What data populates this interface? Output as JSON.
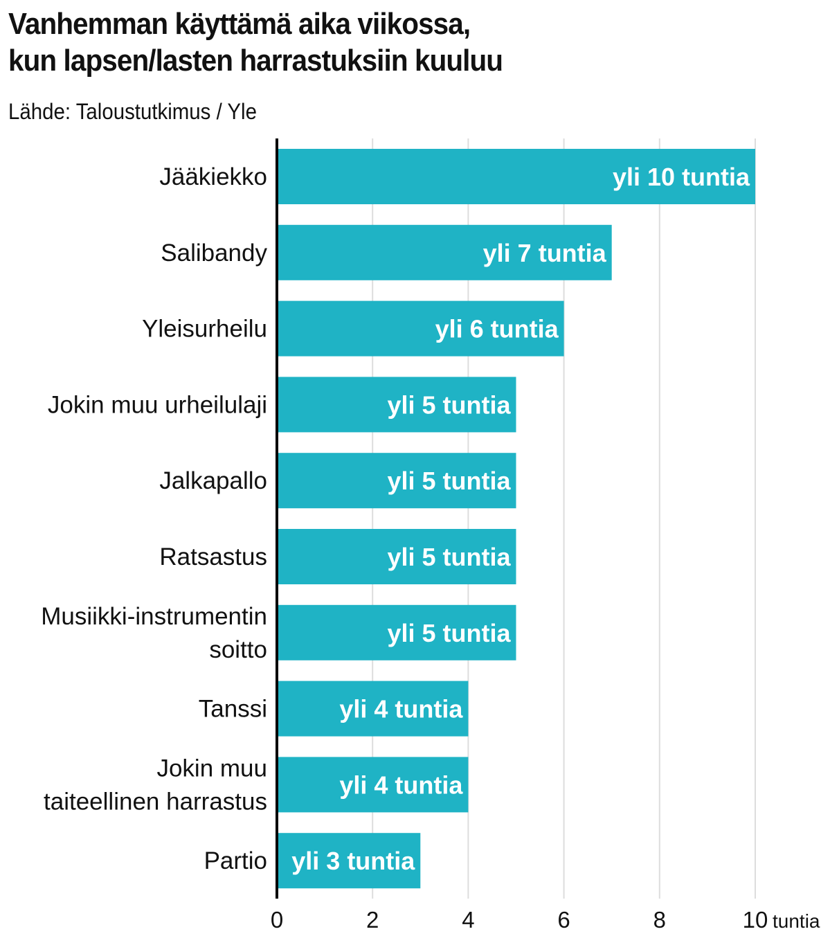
{
  "chart_data": {
    "type": "bar",
    "orientation": "horizontal",
    "title_lines": [
      "Vanhemman käyttämä aika viikossa,",
      "kun lapsen/lasten harrastuksiin kuuluu"
    ],
    "subtitle": "Lähde: Taloustutkimus / Yle",
    "categories": [
      [
        "Jääkiekko"
      ],
      [
        "Salibandy"
      ],
      [
        "Yleisurheilu"
      ],
      [
        "Jokin muu urheilulaji"
      ],
      [
        "Jalkapallo"
      ],
      [
        "Ratsastus"
      ],
      [
        "Musiikki-instrumentin",
        "soitto"
      ],
      [
        "Tanssi"
      ],
      [
        "Jokin muu",
        "taiteellinen harrastus"
      ],
      [
        "Partio"
      ]
    ],
    "values": [
      10,
      7,
      6,
      5,
      5,
      5,
      5,
      4,
      4,
      3
    ],
    "labels": [
      "yli 10 tuntia",
      "yli 7 tuntia",
      "yli 6 tuntia",
      "yli 5 tuntia",
      "yli 5 tuntia",
      "yli 5 tuntia",
      "yli 5 tuntia",
      "yli 4 tuntia",
      "yli 4 tuntia",
      "yli 3 tuntia"
    ],
    "xlim": [
      0,
      10
    ],
    "xticks": [
      0,
      2,
      4,
      6,
      8,
      10
    ],
    "xunit": "tuntia",
    "grid": "vertical",
    "bar_color": "#1fb3c5"
  }
}
